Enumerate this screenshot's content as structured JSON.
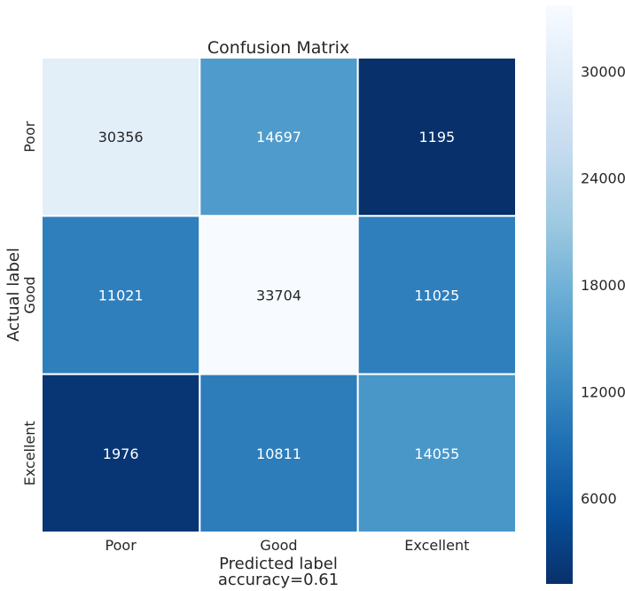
{
  "chart_data": {
    "type": "heatmap",
    "title": "Confusion Matrix",
    "xlabel": "Predicted label",
    "xlabel_sub": "accuracy=0.61",
    "ylabel": "Actual label",
    "x_categories": [
      "Poor",
      "Good",
      "Excellent"
    ],
    "y_categories": [
      "Poor",
      "Good",
      "Excellent"
    ],
    "values": [
      [
        30356,
        14697,
        1195
      ],
      [
        11021,
        33704,
        11025
      ],
      [
        1976,
        10811,
        14055
      ]
    ],
    "color_scale": {
      "name": "Blues_r",
      "min": 1195,
      "max": 33704,
      "ticks": [
        6000,
        12000,
        18000,
        24000,
        30000
      ],
      "tick_labels": [
        "6000",
        "12000",
        "18000",
        "24000",
        "30000"
      ]
    },
    "colors": {
      "low": "#08306b",
      "high": "#f7fbff",
      "text_dark_cell": "#ffffff",
      "text_light_cell": "#262626",
      "cell_border": "#ffffff"
    }
  }
}
